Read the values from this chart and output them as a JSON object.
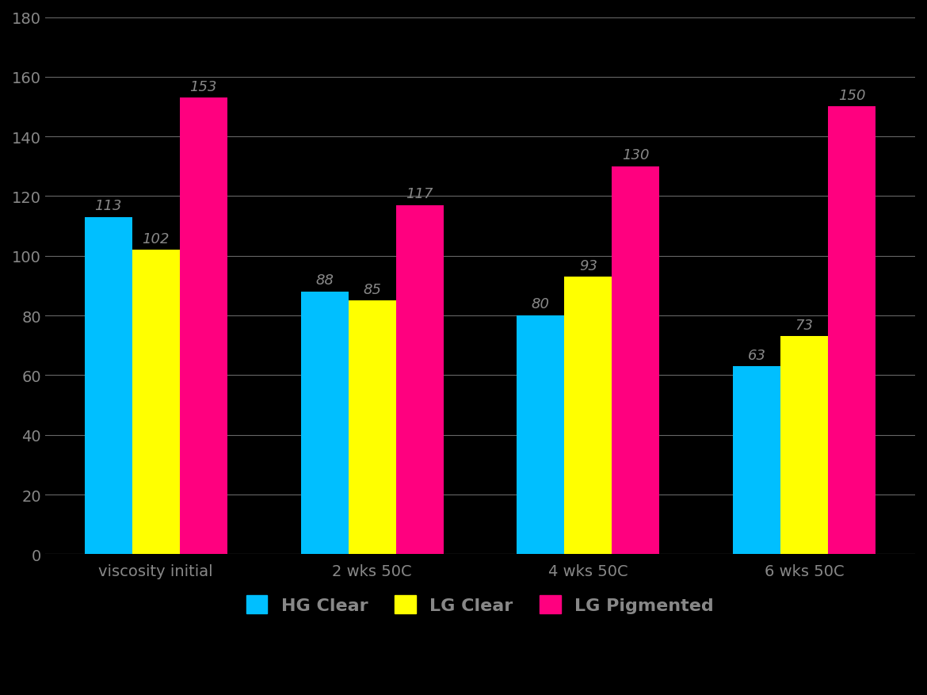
{
  "categories": [
    "viscosity initial",
    "2 wks 50C",
    "4 wks 50C",
    "6 wks 50C"
  ],
  "series": {
    "HG Clear": [
      113,
      88,
      80,
      63
    ],
    "LG Clear": [
      102,
      85,
      93,
      73
    ],
    "LG Pigmented": [
      153,
      117,
      130,
      150
    ]
  },
  "colors": {
    "HG Clear": "#00BFFF",
    "LG Clear": "#FFFF00",
    "LG Pigmented": "#FF007F"
  },
  "ylim": [
    0,
    180
  ],
  "yticks": [
    0,
    20,
    40,
    60,
    80,
    100,
    120,
    140,
    160,
    180
  ],
  "bar_width": 0.22,
  "background_color": "#000000",
  "grid_color": "#666666",
  "tick_color": "#888888",
  "label_fontsize": 14,
  "tick_fontsize": 14,
  "legend_fontsize": 16,
  "value_fontsize": 13
}
